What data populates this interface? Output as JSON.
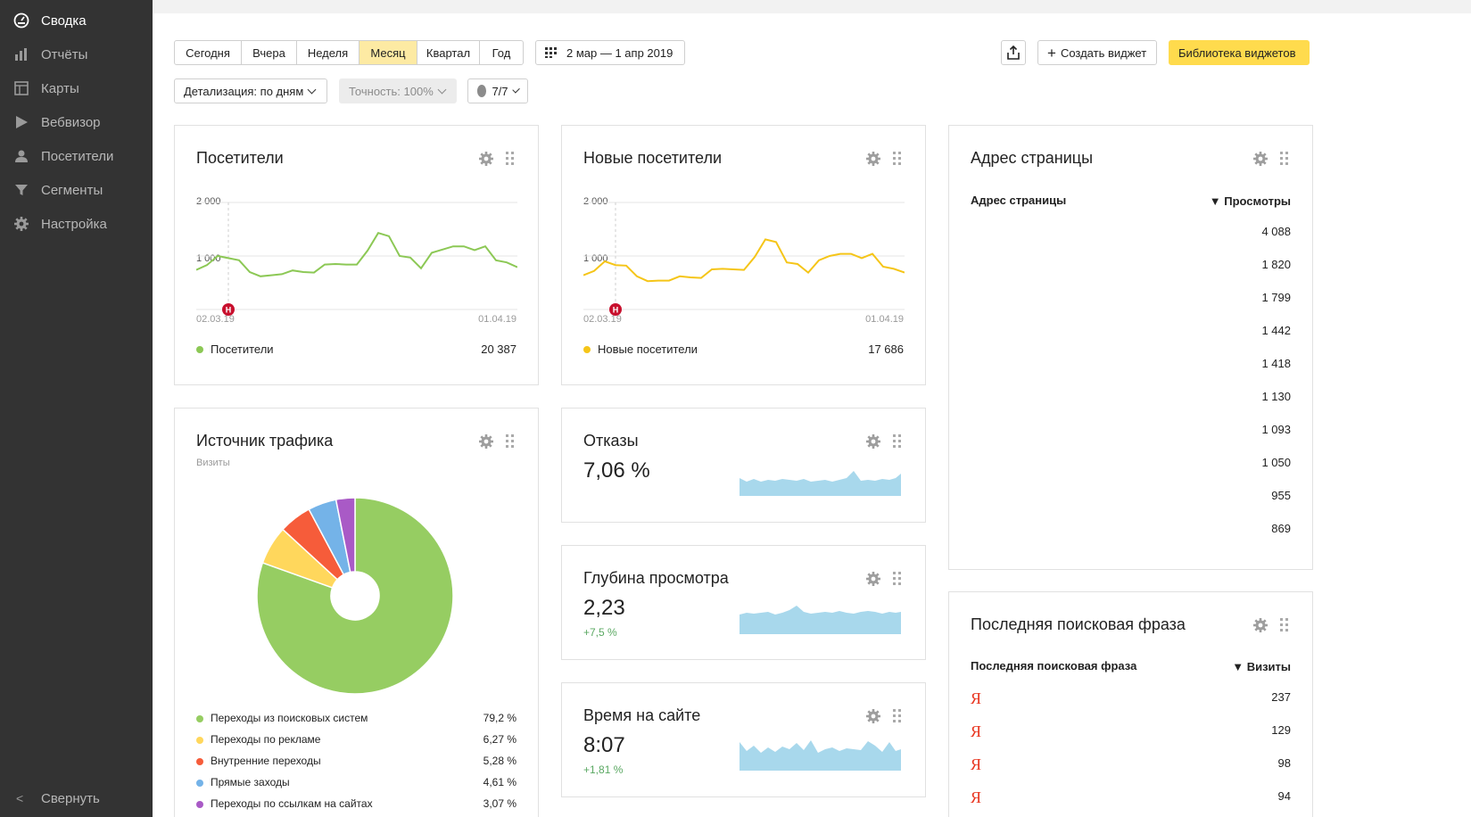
{
  "sidebar": {
    "items": [
      {
        "label": "Сводка",
        "icon": "dashboard-icon"
      },
      {
        "label": "Отчёты",
        "icon": "bar-chart-icon"
      },
      {
        "label": "Карты",
        "icon": "map-icon"
      },
      {
        "label": "Вебвизор",
        "icon": "play-icon"
      },
      {
        "label": "Посетители",
        "icon": "user-icon"
      },
      {
        "label": "Сегменты",
        "icon": "filter-icon"
      },
      {
        "label": "Настройка",
        "icon": "gear-icon"
      }
    ],
    "collapse_label": "Свернуть"
  },
  "toolbar": {
    "periods": [
      "Сегодня",
      "Вчера",
      "Неделя",
      "Месяц",
      "Квартал",
      "Год"
    ],
    "selected_period": "Месяц",
    "date_range": "2 мар — 1 апр 2019",
    "detail": "Детализация: по дням",
    "accuracy": "Точность: 100%",
    "counter": "7/7",
    "create_widget": "Создать виджет",
    "library": "Библиотека виджетов"
  },
  "visitors": {
    "title": "Посетители",
    "tick_high": "2 000",
    "tick_low": "1 000",
    "date_start": "02.03.19",
    "date_end": "01.04.19",
    "legend": "Посетители",
    "total": "20 387",
    "marker": "Н",
    "color": "#8cc855",
    "series": [
      740,
      830,
      1000,
      960,
      920,
      700,
      620,
      640,
      660,
      730,
      700,
      690,
      840,
      850,
      840,
      840,
      1100,
      1430,
      1370,
      1000,
      970,
      770,
      1060,
      1120,
      1180,
      1180,
      1110,
      1180,
      920,
      880,
      790
    ]
  },
  "new_visitors": {
    "title": "Новые посетители",
    "tick_high": "2 000",
    "tick_low": "1 000",
    "date_start": "02.03.19",
    "date_end": "01.04.19",
    "legend": "Новые посетители",
    "total": "17 686",
    "marker": "Н",
    "color": "#f5c518",
    "series": [
      640,
      720,
      900,
      830,
      820,
      620,
      530,
      540,
      540,
      620,
      600,
      590,
      750,
      760,
      750,
      740,
      980,
      1310,
      1260,
      880,
      850,
      690,
      920,
      1000,
      1040,
      1040,
      960,
      1040,
      800,
      760,
      690
    ]
  },
  "traffic": {
    "title": "Источник трафика",
    "subtitle": "Визиты",
    "items": [
      {
        "label": "Переходы из поисковых систем",
        "value": "79,2 %",
        "share": 79.2,
        "color": "#96cd62"
      },
      {
        "label": "Переходы по рекламе",
        "value": "6,27 %",
        "share": 6.27,
        "color": "#ffd75c"
      },
      {
        "label": "Внутренние переходы",
        "value": "5,28 %",
        "share": 5.28,
        "color": "#f65c3a"
      },
      {
        "label": "Прямые заходы",
        "value": "4,61 %",
        "share": 4.61,
        "color": "#74b3e8"
      },
      {
        "label": "Переходы по ссылкам на сайтах",
        "value": "3,07 %",
        "share": 3.07,
        "color": "#a95ac6"
      }
    ]
  },
  "bounce": {
    "title": "Отказы",
    "value": "7,06 %"
  },
  "depth": {
    "title": "Глубина просмотра",
    "value": "2,23",
    "delta": "+7,5 %"
  },
  "time": {
    "title": "Время на сайте",
    "value": "8:07",
    "delta": "+1,81 %"
  },
  "pages": {
    "title": "Адрес страницы",
    "col1": "Адрес страницы",
    "col2": "▼ Просмотры",
    "values": [
      "4 088",
      "1 820",
      "1 799",
      "1 442",
      "1 418",
      "1 130",
      "1 093",
      "1 050",
      "955",
      "869"
    ]
  },
  "search": {
    "title": "Последняя поисковая фраза",
    "col1": "Последняя поисковая фраза",
    "col2": "▼ Визиты",
    "engine_letter": "Я",
    "values": [
      "237",
      "129",
      "98",
      "94"
    ]
  }
}
